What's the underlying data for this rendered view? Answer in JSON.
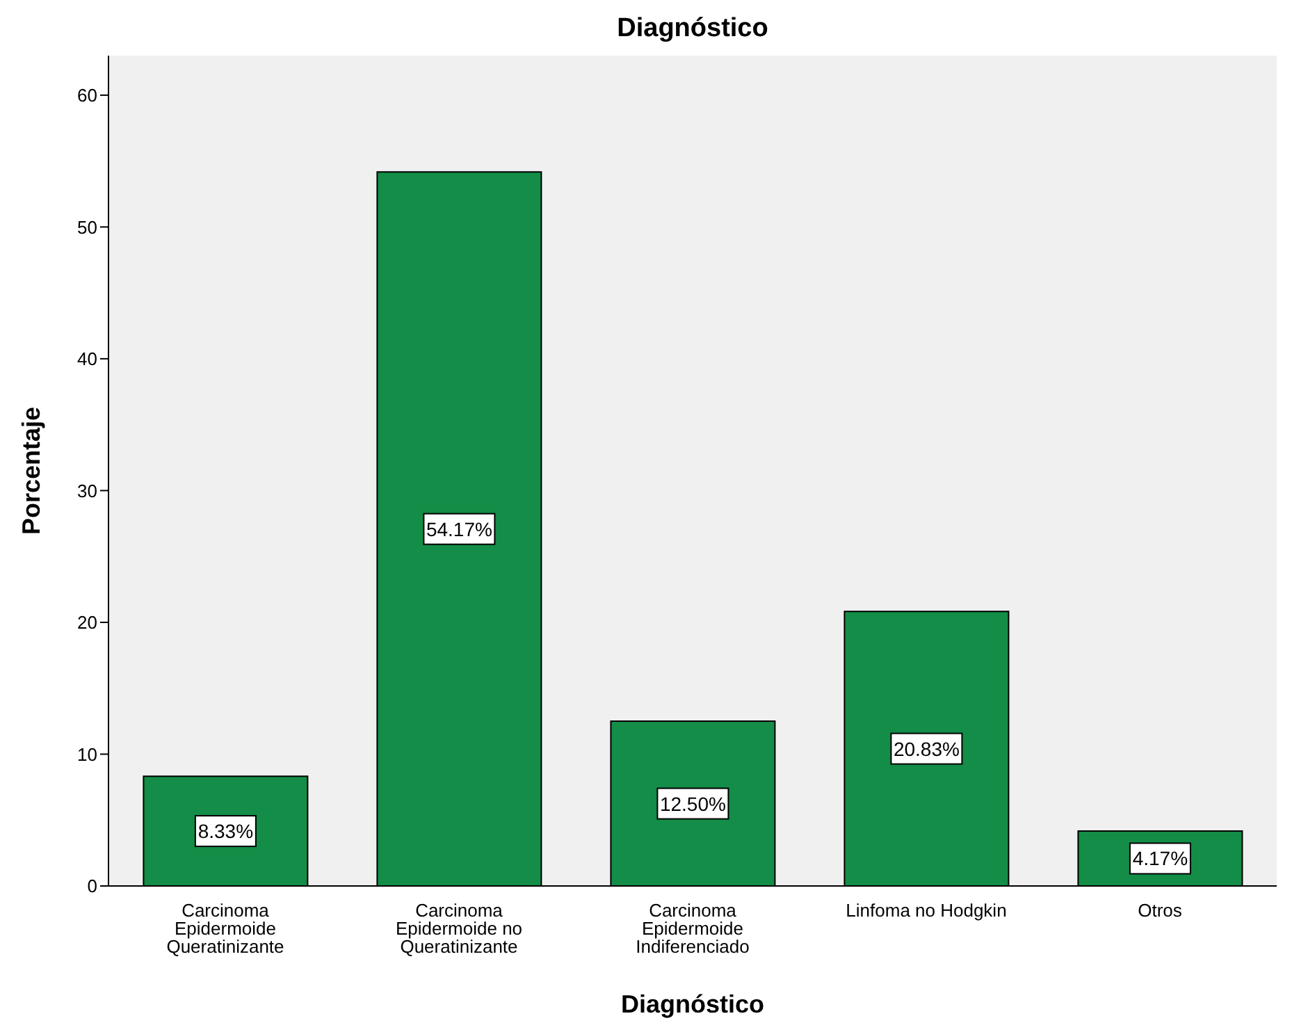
{
  "chart_data": {
    "type": "bar",
    "title": "Diagnóstico",
    "xlabel": "Diagnóstico",
    "ylabel": "Porcentaje",
    "categories": [
      "Carcinoma\nEpidermoide\nQueratinizante",
      "Carcinoma\nEpidermoide no\nQueratinizante",
      "Carcinoma\nEpidermoide\nIndiferenciado",
      "Linfoma no Hodgkin",
      "Otros"
    ],
    "values": [
      8.33,
      54.17,
      12.5,
      20.83,
      4.17
    ],
    "value_labels": [
      "8.33%",
      "54.17%",
      "12.50%",
      "20.83%",
      "4.17%"
    ],
    "color": "#138d47",
    "ylim": [
      0,
      63
    ],
    "yticks": [
      0,
      10,
      20,
      30,
      40,
      50,
      60
    ]
  }
}
